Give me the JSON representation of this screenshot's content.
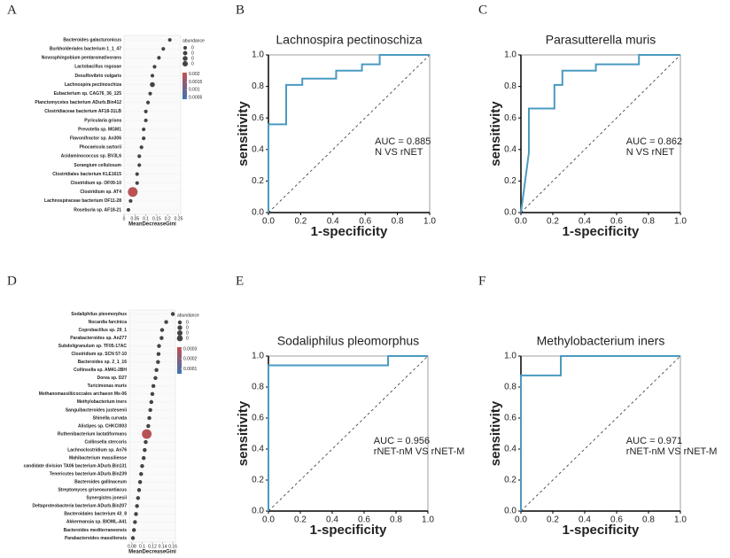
{
  "chart_data": [
    {
      "panel": "A",
      "type": "dot",
      "xlabel": "MeanDecreaseGini",
      "categories": [
        "Bacteroides galacturonicus",
        "Burkholderiales bacterium 1_1_47",
        "Novosphingobium pentaromativorans",
        "Lactobacillus rogosae",
        "Desulfovibrio vulgaris",
        "Lachnospira pectinoschiza",
        "Eubacterium sp. CAG76_36_125",
        "Planctomycetes bacterium ADurb.Bin412",
        "Clostridiaceae bacterium AF18-31LB",
        "Pyricularia grisea",
        "Prevotella sp. MGM1",
        "Flavonifractor sp. An306",
        "Phocaeicola sartorii",
        "Acidaminococcus sp. BV3L6",
        "Sorangium cellulosum",
        "Clostridiales bacterium KLE1615",
        "Clostridium sp. OF09-10",
        "Clostridium sp. AT4",
        "Lachnospiraceae bacterium OF11-28",
        "Roseburia sp. AF18-21"
      ],
      "values": [
        0.21,
        0.18,
        0.16,
        0.14,
        0.13,
        0.13,
        0.12,
        0.11,
        0.1,
        0.1,
        0.09,
        0.09,
        0.08,
        0.07,
        0.07,
        0.06,
        0.06,
        0.04,
        0.03,
        0.02
      ],
      "sizes": [
        0.0001,
        0.0001,
        0.0001,
        0.0001,
        0.0001,
        0.0003,
        0.0001,
        0.0001,
        0.0001,
        0.0001,
        0.0001,
        0.0001,
        0.0001,
        0.0001,
        0.0001,
        0.0001,
        0.0001,
        0.002,
        0.0001,
        0.0001
      ],
      "xlim": [
        0,
        0.26
      ],
      "xticks": [
        0,
        0.05,
        0.1,
        0.15,
        0.2,
        0.25
      ],
      "legend_title": "abundance",
      "size_legend": [
        {
          "value": 0.0001,
          "label": "0"
        },
        {
          "value": 0.0002,
          "label": "0"
        },
        {
          "value": 0.0003,
          "label": "0"
        },
        {
          "value": 0.0004,
          "label": "0"
        }
      ],
      "color_scale": {
        "colors": [
          "#3d73b5",
          "#c0504d"
        ],
        "lim": [
          0.0004,
          0.0021
        ],
        "ticks": [
          0.002,
          0.0015,
          0.001,
          0.0005
        ]
      }
    },
    {
      "panel": "B",
      "type": "roc",
      "title": "Lachnospira pectinoschiza",
      "color": "#4a9ac0",
      "x": [
        0,
        0,
        0.11,
        0.11,
        0.21,
        0.21,
        0.42,
        0.42,
        0.58,
        0.58,
        0.69,
        0.69,
        1
      ],
      "values": [
        0,
        0.56,
        0.56,
        0.81,
        0.81,
        0.85,
        0.85,
        0.9,
        0.9,
        0.94,
        0.94,
        1,
        1
      ],
      "xlim": [
        0,
        1
      ],
      "ylim": [
        0,
        1
      ],
      "xticks": [
        {
          "value": 0,
          "label": "0.0"
        },
        0.2,
        0.4,
        0.6,
        0.8,
        {
          "value": 1,
          "label": "1.0"
        }
      ],
      "yticks": [
        {
          "value": 0,
          "label": "0.0"
        },
        0.2,
        0.4,
        0.6,
        0.8,
        {
          "value": 1,
          "label": "1.0"
        }
      ],
      "xlabel": "1-specificity",
      "ylabel": "sensitivity",
      "annotations": [
        "AUC = 0.885",
        "N VS rNET"
      ]
    },
    {
      "panel": "C",
      "type": "roc",
      "title": "Parasutterella muris",
      "color": "#4a9ac0",
      "x": [
        0,
        0.05,
        0.05,
        0.21,
        0.21,
        0.26,
        0.26,
        0.47,
        0.47,
        0.74,
        0.74,
        1
      ],
      "values": [
        0,
        0.38,
        0.66,
        0.66,
        0.81,
        0.81,
        0.9,
        0.9,
        0.94,
        0.94,
        1,
        1
      ],
      "xlim": [
        0,
        1
      ],
      "ylim": [
        0,
        1
      ],
      "xticks": [
        {
          "value": 0,
          "label": "0.0"
        },
        0.2,
        0.4,
        0.6,
        0.8,
        {
          "value": 1,
          "label": "1.0"
        }
      ],
      "yticks": [
        {
          "value": 0,
          "label": "0.0"
        },
        0.2,
        0.4,
        0.6,
        0.8,
        {
          "value": 1,
          "label": "1.0"
        }
      ],
      "xlabel": "1-specificity",
      "ylabel": "sensitivity",
      "annotations": [
        "AUC = 0.862",
        "N VS rNET"
      ]
    },
    {
      "panel": "D",
      "type": "dot",
      "xlabel": "MeanDecreaseGini",
      "categories": [
        "Sodaliphilus pleomorphus",
        "Nocardia farcinica",
        "Coprobacillus sp. 29_1",
        "Parabacteroides sp. An277",
        "Subdoligranulum sp. TF05-17AC",
        "Clostridium sp. SCN 57-10",
        "Bacteroides sp. 2_1_16",
        "Collinsella sp. AM41-2BH",
        "Dorea sp. D27",
        "Turicimonas muris",
        "Methanomassiliicoccales archaeon Mx-06",
        "Methylobacterium iners",
        "Sanguibacteroides justesenii",
        "Shinella curvata",
        "Alistipes sp. CHKCI003",
        "Ruthenibacterium lactatiformans",
        "Collinsella stercoris",
        "Lachnoclostridium sp. An76",
        "Mahibacterium massiliense",
        "candidate division TA06 bacterium ADurb.Bin131",
        "Tenericutes bacterium ADurb.Bin239",
        "Bacteroides gallinaceum",
        "Streptomyces griseoaurantiacus",
        "Synergistes jonesii",
        "Deltaproteobacteria bacterium ADurb.Bin207",
        "Bacteroidales bacterium 43_8",
        "Akkermansia sp. BIOML-A41",
        "Bacteroides mediterraneensis",
        "Parabacteroides massiliensis"
      ],
      "values": [
        0.16,
        0.147,
        0.139,
        0.138,
        0.133,
        0.132,
        0.131,
        0.128,
        0.126,
        0.122,
        0.12,
        0.118,
        0.116,
        0.114,
        0.112,
        0.109,
        0.107,
        0.105,
        0.103,
        0.1,
        0.098,
        0.096,
        0.094,
        0.092,
        0.09,
        0.088,
        0.086,
        0.084,
        0.082
      ],
      "sizes": [
        2e-05,
        2e-05,
        2e-05,
        2e-05,
        2e-05,
        2e-05,
        2e-05,
        2e-05,
        2e-05,
        2e-05,
        2e-05,
        2e-05,
        2e-05,
        2e-05,
        2e-05,
        0.0003,
        2e-05,
        2e-05,
        2e-05,
        2e-05,
        2e-05,
        2e-05,
        2e-05,
        2e-05,
        2e-05,
        2e-05,
        2e-05,
        2e-05,
        2e-05
      ],
      "xlim": [
        0.075,
        0.165
      ],
      "xticks": [
        0.08,
        0.1,
        0.12,
        0.14,
        0.16
      ],
      "legend_title": "abundance",
      "size_legend": [
        {
          "value": 2e-05,
          "label": "0"
        },
        {
          "value": 4e-05,
          "label": "0"
        },
        {
          "value": 6e-05,
          "label": "0"
        },
        {
          "value": 8e-05,
          "label": "0"
        }
      ],
      "color_scale": {
        "colors": [
          "#3d73b5",
          "#c0504d"
        ],
        "lim": [
          5e-05,
          0.00032
        ],
        "ticks": [
          0.0003,
          0.0002,
          0.0001
        ]
      }
    },
    {
      "panel": "E",
      "type": "roc",
      "title": "Sodaliphilus pleomorphus",
      "color": "#4a9ac0",
      "x": [
        0,
        0,
        0.75,
        0.75,
        1
      ],
      "values": [
        0,
        0.94,
        0.94,
        1,
        1
      ],
      "xlim": [
        0,
        1
      ],
      "ylim": [
        0,
        1
      ],
      "xticks": [
        {
          "value": 0,
          "label": "0.0"
        },
        0.2,
        0.4,
        0.6,
        0.8,
        {
          "value": 1,
          "label": "1.0"
        }
      ],
      "yticks": [
        {
          "value": 0,
          "label": "0.0"
        },
        0.2,
        0.4,
        0.6,
        0.8,
        {
          "value": 1,
          "label": "1.0"
        }
      ],
      "xlabel": "1-specificity",
      "ylabel": "sensitivity",
      "annotations": [
        "AUC = 0.956",
        "rNET-nM VS rNET-M"
      ]
    },
    {
      "panel": "F",
      "type": "roc",
      "title": "Methylobacterium iners",
      "color": "#4a9ac0",
      "x": [
        0,
        0,
        0.25,
        0.25,
        1
      ],
      "values": [
        0,
        0.875,
        0.875,
        1,
        1
      ],
      "xlim": [
        0,
        1
      ],
      "ylim": [
        0,
        1
      ],
      "xticks": [
        {
          "value": 0,
          "label": "0.0"
        },
        0.2,
        0.4,
        0.6,
        0.8,
        {
          "value": 1,
          "label": "1.0"
        }
      ],
      "yticks": [
        {
          "value": 0,
          "label": "0.0"
        },
        0.2,
        0.4,
        0.6,
        0.8,
        {
          "value": 1,
          "label": "1.0"
        }
      ],
      "xlabel": "1-specificity",
      "ylabel": "sensitivity",
      "annotations": [
        "AUC = 0.971",
        "rNET-nM VS rNET-M"
      ]
    }
  ]
}
